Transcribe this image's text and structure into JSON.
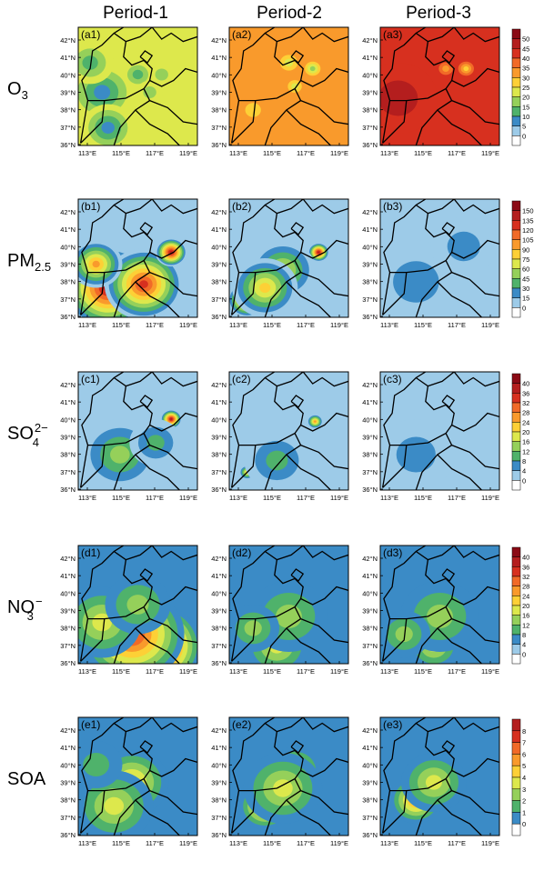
{
  "columns": [
    "Period-1",
    "Period-2",
    "Period-3"
  ],
  "rows": [
    {
      "label": "O3",
      "label_main": "O",
      "label_sub": "3",
      "label_sup": "",
      "panels": [
        "(a1)",
        "(a2)",
        "(a3)"
      ],
      "levels": [
        50,
        45,
        40,
        35,
        30,
        25,
        20,
        15,
        10,
        5,
        0
      ],
      "colors": [
        "#8b0a15",
        "#b41e1e",
        "#d7301f",
        "#f16a28",
        "#f99a2c",
        "#fdd036",
        "#dde84c",
        "#95d05a",
        "#4fb26b",
        "#3b8bc6",
        "#9dcbe8",
        "#ffffff"
      ],
      "maps": [
        {
          "base": 6,
          "blobs": [
            [
              0.2,
              0.55,
              0.25,
              9
            ],
            [
              0.25,
              0.85,
              0.2,
              9
            ],
            [
              0.5,
              0.4,
              0.12,
              8
            ],
            [
              0.6,
              0.55,
              0.1,
              7
            ],
            [
              0.1,
              0.3,
              0.18,
              8
            ],
            [
              0.7,
              0.4,
              0.1,
              7
            ]
          ]
        },
        {
          "base": 4,
          "blobs": [
            [
              0.5,
              0.3,
              0.1,
              6
            ],
            [
              0.7,
              0.35,
              0.08,
              7
            ],
            [
              0.55,
              0.5,
              0.08,
              6
            ],
            [
              0.2,
              0.7,
              0.12,
              5
            ]
          ]
        },
        {
          "base": 2,
          "blobs": [
            [
              0.15,
              0.6,
              0.3,
              1
            ],
            [
              0.72,
              0.35,
              0.08,
              5
            ],
            [
              0.55,
              0.35,
              0.08,
              4
            ]
          ]
        }
      ]
    },
    {
      "label": "PM2.5",
      "label_main": "PM",
      "label_sub": "2.5",
      "label_sup": "",
      "panels": [
        "(b1)",
        "(b2)",
        "(b3)"
      ],
      "levels": [
        150,
        135,
        120,
        105,
        90,
        75,
        60,
        45,
        30,
        15,
        0
      ],
      "colors": [
        "#8b0a15",
        "#b41e1e",
        "#d7301f",
        "#f16a28",
        "#f99a2c",
        "#fdd036",
        "#dde84c",
        "#95d05a",
        "#4fb26b",
        "#3b8bc6",
        "#9dcbe8",
        "#ffffff"
      ],
      "maps": [
        {
          "base": 10,
          "blobs": [
            [
              0.25,
              0.75,
              0.35,
              1
            ],
            [
              0.55,
              0.72,
              0.3,
              2
            ],
            [
              0.78,
              0.45,
              0.12,
              1
            ],
            [
              0.15,
              0.55,
              0.2,
              4
            ]
          ]
        },
        {
          "base": 10,
          "blobs": [
            [
              0.15,
              0.85,
              0.15,
              2
            ],
            [
              0.75,
              0.45,
              0.08,
              1
            ],
            [
              0.45,
              0.6,
              0.25,
              6
            ],
            [
              0.3,
              0.75,
              0.25,
              5
            ]
          ]
        },
        {
          "base": 10,
          "blobs": [
            [
              0.3,
              0.7,
              0.35,
              9
            ],
            [
              0.7,
              0.4,
              0.25,
              9
            ]
          ]
        }
      ]
    },
    {
      "label": "SO4 2-",
      "label_main": "SO",
      "label_sub": "4",
      "label_sup": "2−",
      "panels": [
        "(c1)",
        "(c2)",
        "(c3)"
      ],
      "levels": [
        40,
        36,
        32,
        28,
        24,
        20,
        16,
        12,
        8,
        4,
        0
      ],
      "colors": [
        "#8b0a15",
        "#b41e1e",
        "#d7301f",
        "#f16a28",
        "#f99a2c",
        "#fdd036",
        "#dde84c",
        "#95d05a",
        "#4fb26b",
        "#3b8bc6",
        "#9dcbe8",
        "#ffffff"
      ],
      "maps": [
        {
          "base": 10,
          "blobs": [
            [
              0.15,
              0.8,
              0.1,
              1
            ],
            [
              0.78,
              0.4,
              0.08,
              1
            ],
            [
              0.35,
              0.7,
              0.3,
              7
            ],
            [
              0.65,
              0.6,
              0.2,
              8
            ]
          ]
        },
        {
          "base": 10,
          "blobs": [
            [
              0.72,
              0.42,
              0.06,
              4
            ],
            [
              0.15,
              0.85,
              0.06,
              5
            ],
            [
              0.4,
              0.75,
              0.25,
              8
            ]
          ]
        },
        {
          "base": 10,
          "blobs": [
            [
              0.3,
              0.7,
              0.3,
              9
            ]
          ]
        }
      ]
    },
    {
      "label": "NO3 -",
      "label_main": "NO",
      "label_sub": "3",
      "label_sup": "−",
      "panels": [
        "(d1)",
        "(d2)",
        "(d3)"
      ],
      "levels": [
        40,
        36,
        32,
        28,
        24,
        20,
        16,
        12,
        8,
        4,
        0
      ],
      "colors": [
        "#8b0a15",
        "#b41e1e",
        "#d7301f",
        "#f16a28",
        "#f99a2c",
        "#fdd036",
        "#dde84c",
        "#95d05a",
        "#4fb26b",
        "#3b8bc6",
        "#9dcbe8",
        "#ffffff"
      ],
      "maps": [
        {
          "base": 9,
          "blobs": [
            [
              0.65,
              0.85,
              0.35,
              0
            ],
            [
              0.45,
              0.75,
              0.4,
              2
            ],
            [
              0.2,
              0.65,
              0.3,
              6
            ],
            [
              0.5,
              0.5,
              0.25,
              7
            ]
          ]
        },
        {
          "base": 9,
          "blobs": [
            [
              0.4,
              0.85,
              0.25,
              6
            ],
            [
              0.5,
              0.6,
              0.3,
              7
            ],
            [
              0.2,
              0.7,
              0.2,
              7
            ]
          ]
        },
        {
          "base": 9,
          "blobs": [
            [
              0.45,
              0.85,
              0.2,
              6
            ],
            [
              0.5,
              0.6,
              0.3,
              7
            ],
            [
              0.2,
              0.75,
              0.2,
              7
            ]
          ]
        }
      ]
    },
    {
      "label": "SOA",
      "label_main": "SOA",
      "label_sub": "",
      "label_sup": "",
      "panels": [
        "(e1)",
        "(e2)",
        "(e3)"
      ],
      "levels": [
        8,
        7,
        6,
        5,
        4,
        3,
        2,
        1,
        0
      ],
      "colors": [
        "#b41e1e",
        "#d7301f",
        "#f16a28",
        "#f99a2c",
        "#fdd036",
        "#dde84c",
        "#95d05a",
        "#4fb26b",
        "#3b8bc6",
        "#ffffff"
      ],
      "maps": [
        {
          "base": 8,
          "blobs": [
            [
              0.35,
              0.65,
              0.2,
              2
            ],
            [
              0.45,
              0.55,
              0.28,
              4
            ],
            [
              0.3,
              0.75,
              0.3,
              5
            ],
            [
              0.15,
              0.4,
              0.2,
              7
            ]
          ]
        },
        {
          "base": 8,
          "blobs": [
            [
              0.35,
              0.6,
              0.15,
              2
            ],
            [
              0.3,
              0.75,
              0.2,
              3
            ],
            [
              0.55,
              0.45,
              0.2,
              4
            ],
            [
              0.45,
              0.6,
              0.3,
              5
            ]
          ]
        },
        {
          "base": 8,
          "blobs": [
            [
              0.25,
              0.75,
              0.12,
              2
            ],
            [
              0.3,
              0.7,
              0.2,
              3
            ],
            [
              0.45,
              0.55,
              0.25,
              5
            ]
          ]
        }
      ]
    }
  ],
  "lat_labels": [
    "42°N",
    "41°N",
    "40°N",
    "39°N",
    "38°N",
    "37°N",
    "36°N"
  ],
  "lon_labels": [
    "113°E",
    "115°E",
    "117°E",
    "119°E"
  ]
}
